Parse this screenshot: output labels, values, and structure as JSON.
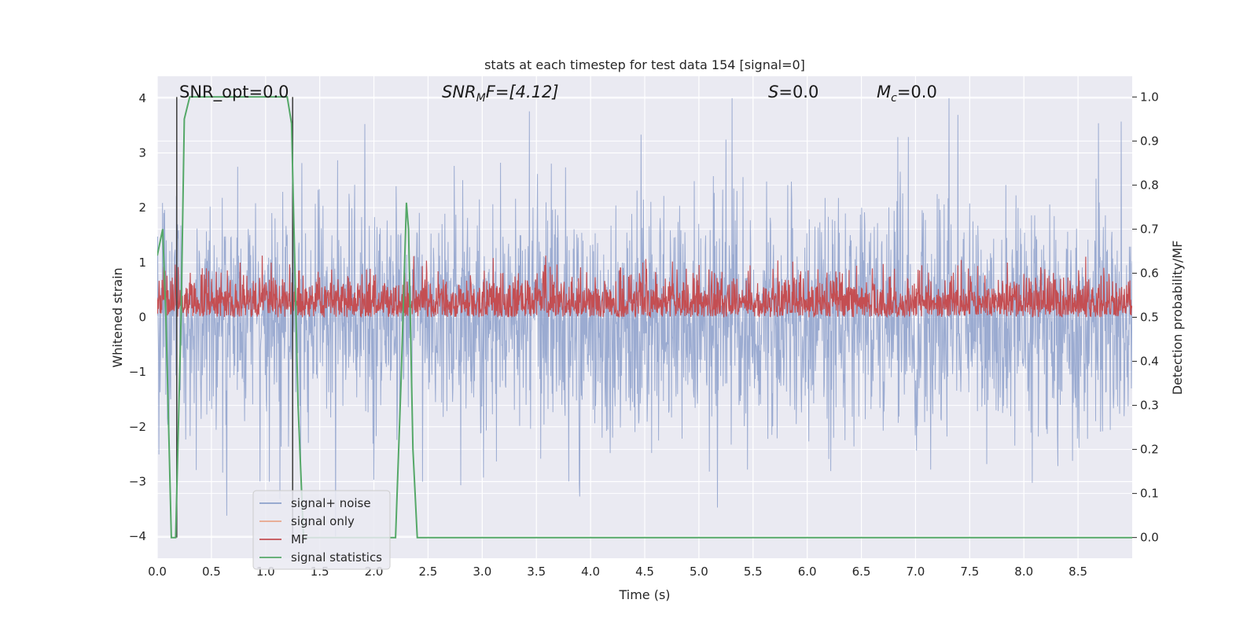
{
  "chart_data": {
    "type": "line",
    "title": "stats at each timestep for test data 154 [signal=0]",
    "xlabel": "Time (s)",
    "ylabel": "Whitened strain",
    "y2label": "Detection probability/MF",
    "xlim": [
      0.0,
      9.0
    ],
    "ylim": [
      -4.4,
      4.4
    ],
    "y2lim": [
      -0.047,
      1.047
    ],
    "grid": true,
    "x_ticks": [
      0.0,
      0.5,
      1.0,
      1.5,
      2.0,
      2.5,
      3.0,
      3.5,
      4.0,
      4.5,
      5.0,
      5.5,
      6.0,
      6.5,
      7.0,
      7.5,
      8.0,
      8.5
    ],
    "x_tick_labels": [
      "0.0",
      "0.5",
      "1.0",
      "1.5",
      "2.0",
      "2.5",
      "3.0",
      "3.5",
      "4.0",
      "4.5",
      "5.0",
      "5.5",
      "6.0",
      "6.5",
      "7.0",
      "7.5",
      "8.0",
      "8.5"
    ],
    "y_ticks": [
      -4,
      -3,
      -2,
      -1,
      0,
      1,
      2,
      3,
      4
    ],
    "y_tick_labels": [
      "−4",
      "−3",
      "−2",
      "−1",
      "0",
      "1",
      "2",
      "3",
      "4"
    ],
    "y2_ticks": [
      0.0,
      0.1,
      0.2,
      0.3,
      0.4,
      0.5,
      0.6,
      0.7,
      0.8,
      0.9,
      1.0
    ],
    "y2_tick_labels": [
      "0.0",
      "0.1",
      "0.2",
      "0.3",
      "0.4",
      "0.5",
      "0.6",
      "0.7",
      "0.8",
      "0.9",
      "1.0"
    ],
    "annotations": {
      "snr_opt": "SNR_opt=0.0",
      "snr_mf": "SNR",
      "snr_mf_sub": "M",
      "snr_mf_rest": "F=[4.12]",
      "s": "S",
      "s_rest": "=0.0",
      "mc": "M",
      "mc_sub": "c",
      "mc_rest": "=0.0"
    },
    "vertical_markers_x": [
      0.18,
      1.25
    ],
    "series": [
      {
        "name": "signal+ noise",
        "color": "#8da0cb",
        "axis": "left",
        "description": "whitened noise, amplitude roughly within ±2.5 with spikes to ±4"
      },
      {
        "name": "signal only",
        "color": "#e8a58b",
        "axis": "left",
        "values": "zero"
      },
      {
        "name": "MF",
        "color": "#c44e52",
        "axis": "right",
        "description": "matched filter output fluctuating between 0.5 and 0.64"
      },
      {
        "name": "signal statistics",
        "color": "#55a868",
        "axis": "right",
        "x": [
          0.0,
          0.05,
          0.08,
          0.11,
          0.13,
          0.17,
          0.22,
          0.25,
          0.3,
          0.8,
          1.2,
          1.24,
          1.3,
          1.35,
          1.4,
          1.9,
          2.0,
          2.1,
          2.2,
          2.25,
          2.3,
          2.32,
          2.36,
          2.4,
          2.6,
          9.0
        ],
        "y": [
          0.64,
          0.7,
          0.5,
          0.2,
          0.0,
          0.0,
          0.5,
          0.95,
          1.0,
          1.0,
          1.0,
          0.94,
          0.3,
          0.0,
          0.0,
          0.0,
          0.0,
          0.0,
          0.0,
          0.35,
          0.76,
          0.7,
          0.2,
          0.0,
          0.0,
          0.0
        ]
      }
    ],
    "legend": {
      "location": "lower-left",
      "entries": [
        {
          "label": "signal+ noise",
          "color": "#8da0cb"
        },
        {
          "label": "signal only",
          "color": "#e8a58b"
        },
        {
          "label": "MF",
          "color": "#c44e52"
        },
        {
          "label": "signal statistics",
          "color": "#55a868"
        }
      ]
    },
    "colors": {
      "plot_bg": "#eaeaf2",
      "grid": "#ffffff",
      "noise": "#8da0cb",
      "signal_only": "#e8a58b",
      "mf": "#c44e52",
      "stats": "#55a868",
      "marker": "#444444"
    }
  }
}
